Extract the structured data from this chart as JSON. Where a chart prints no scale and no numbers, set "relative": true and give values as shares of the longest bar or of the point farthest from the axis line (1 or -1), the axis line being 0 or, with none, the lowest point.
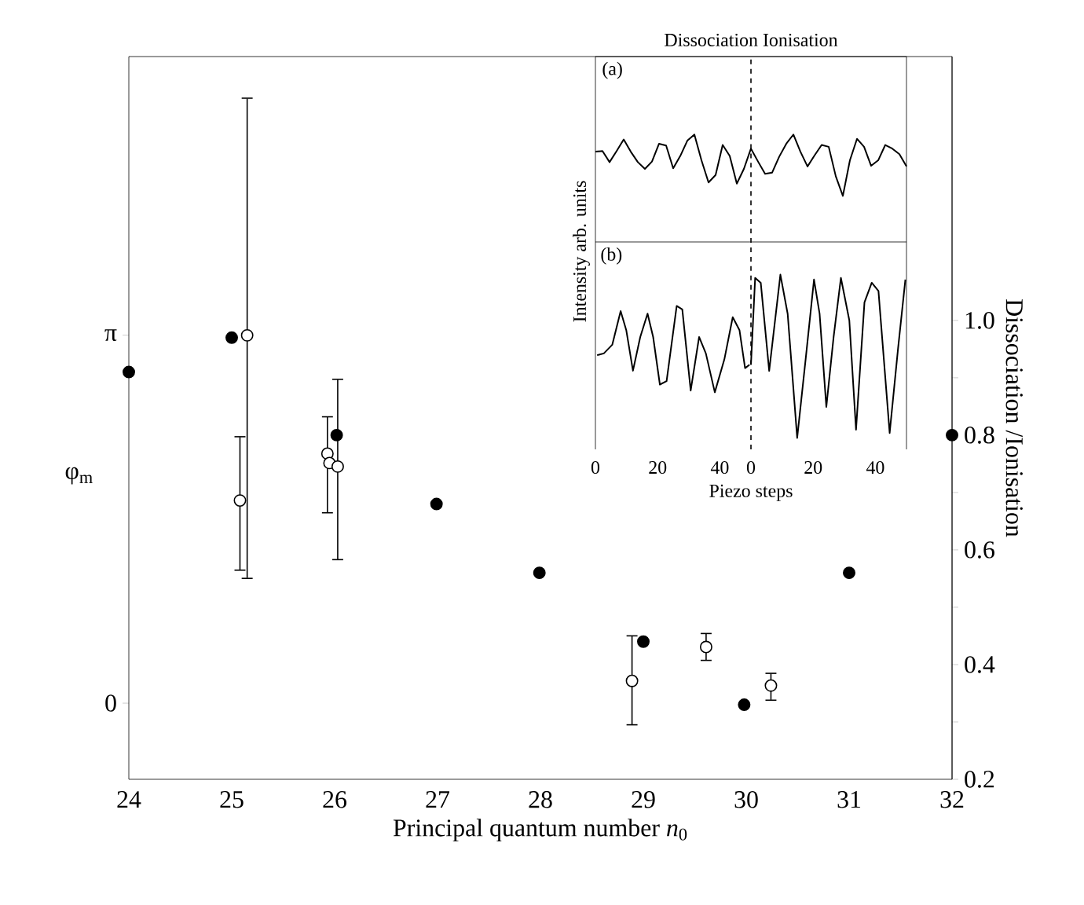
{
  "chart_data": [
    {
      "type": "scatter",
      "xlabel": "Principal quantum number *n*$_{0}$",
      "ylabel": "φ$_{m}$",
      "y2label": "Dissociation /Ionisation",
      "marker": "circle",
      "xlim": [
        24,
        32
      ],
      "xticks": [
        24,
        25,
        26,
        27,
        28,
        29,
        30,
        31,
        32
      ],
      "ylim": [
        -0.65,
        5.52
      ],
      "yticks": [
        {
          "value": 0,
          "label": "0"
        },
        {
          "value": 3.1416,
          "label": "π"
        }
      ],
      "y2lim": [
        0.2,
        1.46
      ],
      "y2ticks": [
        0.2,
        {
          "value": 0.3,
          "label": null
        },
        0.4,
        {
          "value": 0.5,
          "label": null
        },
        0.6,
        {
          "value": 0.7,
          "label": null
        },
        0.8,
        {
          "value": 0.9,
          "label": null
        },
        {
          "value": 1,
          "label": "1.0"
        }
      ],
      "series": [
        {
          "axis": "y2",
          "color": "#000000",
          "x": [
            24,
            25,
            26.02,
            26.99,
            27.99,
            29,
            29.98,
            31,
            32
          ],
          "values": [
            0.91,
            0.97,
            0.8,
            0.68,
            0.56,
            0.44,
            0.33,
            0.56,
            0.8
          ]
        },
        {
          "axis": "y",
          "color": "#ffffff",
          "x": [
            25.08,
            25.15,
            25.93,
            25.95,
            26.03,
            28.89,
            29.61,
            30.24
          ],
          "values": [
            1.73,
            3.14,
            2.13,
            2.05,
            2.02,
            0.19,
            0.48,
            0.15
          ],
          "errors": [
            [
              1.13,
              2.28
            ],
            [
              1.06,
              5.17
            ],
            [
              1.62,
              2.45
            ],
            null,
            [
              1.22,
              2.77
            ],
            [
              -0.19,
              0.58
            ],
            [
              0.36,
              0.6
            ],
            [
              0.02,
              0.26
            ]
          ]
        }
      ]
    },
    {
      "type": "line",
      "title": "Dissociation Ionisation",
      "relative": true,
      "tick_labels": false,
      "annotations": [
        "(a)"
      ],
      "categories": [
        null,
        null,
        null,
        null,
        null,
        null,
        null,
        null,
        null,
        null,
        null,
        null,
        null,
        null,
        null,
        null,
        null,
        null,
        null,
        null,
        null,
        null,
        null,
        null,
        null,
        null,
        null,
        null,
        null,
        null,
        null,
        null,
        null,
        null,
        null,
        null,
        null,
        null,
        null,
        null,
        null,
        null,
        null,
        null,
        null
      ],
      "series": [
        {
          "color": "#000000",
          "values": [
            0.72,
            0.73,
            0.55,
            0.73,
            0.92,
            0.72,
            0.55,
            0.44,
            0.56,
            0.85,
            0.82,
            0.45,
            0.65,
            0.9,
            1.0,
            0.58,
            0.22,
            0.34,
            0.83,
            0.65,
            0.2,
            0.44,
            0.77,
            0.56,
            0.36,
            0.38,
            0.64,
            0.85,
            1.0,
            0.72,
            0.48,
            0.66,
            0.83,
            0.8,
            0.32,
            0,
            0.58,
            0.93,
            0.8,
            0.49,
            0.58,
            0.83,
            0.77,
            0.68,
            0.48
          ]
        }
      ]
    },
    {
      "type": "line",
      "xlabel": "Piezo steps",
      "ylabel": "Intensity arb. units",
      "relative": true,
      "xlim": [
        0,
        50
      ],
      "xticks": [
        0,
        20,
        40
      ],
      "tick_labels": "x",
      "annotations": [
        "(b)"
      ],
      "ref_lines": [
        {
          "axis": "x",
          "value": 50,
          "line_style": "dashed"
        }
      ],
      "series": [
        {
          "color": "#000000",
          "x": [
            0.54,
            2.7,
            5.41,
            8.11,
            9.91,
            12.07,
            14.41,
            16.76,
            18.56,
            20.72,
            22.88,
            26.13,
            27.93,
            30.63,
            33.33,
            35.5,
            38.38,
            41.44,
            44.14,
            46.31,
            48.11,
            49.55
          ],
          "values": [
            0.43,
            0.45,
            0.55,
            0.94,
            0.72,
            0.25,
            0.64,
            0.91,
            0.64,
            0.09,
            0.13,
            1.0,
            0.96,
            0.02,
            0.64,
            0.45,
            0,
            0.38,
            0.87,
            0.72,
            0.28,
            0.32
          ]
        }
      ]
    },
    {
      "type": "line",
      "relative": true,
      "xlim": [
        0,
        50
      ],
      "xticks": [
        0,
        20,
        40
      ],
      "tick_labels": "x",
      "series": [
        {
          "color": "#000000",
          "x": [
            0,
            1.35,
            3.15,
            5.86,
            9.46,
            11.8,
            14.86,
            17.57,
            20.27,
            22.07,
            24.23,
            26.58,
            28.92,
            31.62,
            33.78,
            36.49,
            38.83,
            40.99,
            44.59,
            47.3,
            49.64
          ],
          "values": [
            0.45,
            0.98,
            0.95,
            0.41,
            1.0,
            0.76,
            0,
            0.48,
            0.97,
            0.76,
            0.19,
            0.62,
            0.98,
            0.72,
            0.05,
            0.83,
            0.95,
            0.9,
            0.03,
            0.55,
            0.97
          ]
        }
      ]
    }
  ]
}
